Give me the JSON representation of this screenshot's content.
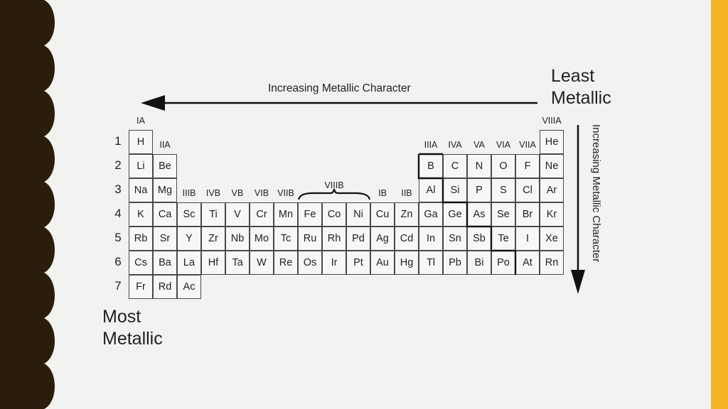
{
  "top_right_label": [
    "Least",
    "Metallic"
  ],
  "bottom_left_label": [
    "Most",
    "Metallic"
  ],
  "horizontal_arrow_label": "Increasing Metallic Character",
  "vertical_arrow_label": "Increasing Metallic Character",
  "period_labels": [
    "1",
    "2",
    "3",
    "4",
    "5",
    "6",
    "7"
  ],
  "group_labels": [
    "IA",
    "IIA",
    "IIIB",
    "IVB",
    "VB",
    "VIB",
    "VIIB",
    "VIIIB",
    "IB",
    "IIB",
    "IIIA",
    "IVA",
    "VA",
    "VIA",
    "VIIA",
    "VIIIA"
  ],
  "rows": [
    [
      "H",
      "",
      "",
      "",
      "",
      "",
      "",
      "",
      "",
      "",
      "",
      "",
      "",
      "",
      "",
      "",
      "",
      "He"
    ],
    [
      "Li",
      "Be",
      "",
      "",
      "",
      "",
      "",
      "",
      "",
      "",
      "",
      "",
      "B",
      "C",
      "N",
      "O",
      "F",
      "Ne"
    ],
    [
      "Na",
      "Mg",
      "",
      "",
      "",
      "",
      "",
      "",
      "",
      "",
      "",
      "",
      "Al",
      "Si",
      "P",
      "S",
      "Cl",
      "Ar"
    ],
    [
      "K",
      "Ca",
      "Sc",
      "Ti",
      "V",
      "Cr",
      "Mn",
      "Fe",
      "Co",
      "Ni",
      "Cu",
      "Zn",
      "Ga",
      "Ge",
      "As",
      "Se",
      "Br",
      "Kr"
    ],
    [
      "Rb",
      "Sr",
      "Y",
      "Zr",
      "Nb",
      "Mo",
      "Tc",
      "Ru",
      "Rh",
      "Pd",
      "Ag",
      "Cd",
      "In",
      "Sn",
      "Sb",
      "Te",
      "I",
      "Xe"
    ],
    [
      "Cs",
      "Ba",
      "La",
      "Hf",
      "Ta",
      "W",
      "Re",
      "Os",
      "Ir",
      "Pt",
      "Au",
      "Hg",
      "Tl",
      "Pb",
      "Bi",
      "Po",
      "At",
      "Rn"
    ],
    [
      "Fr",
      "Rd",
      "Ac",
      "",
      "",
      "",
      "",
      "",
      "",
      "",
      "",
      "",
      "",
      "",
      "",
      "",
      "",
      ""
    ]
  ],
  "colors": {
    "accent_stripe": "#f6b426",
    "left_border": "#2a1d0b",
    "background": "#f2f2f1"
  }
}
